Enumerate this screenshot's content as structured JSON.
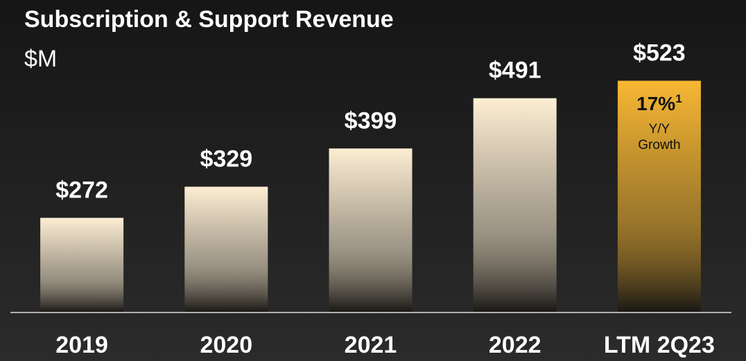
{
  "chart_data": {
    "type": "bar",
    "title": "Subscription & Support Revenue",
    "subtitle": "$M",
    "categories": [
      "2019",
      "2020",
      "2021",
      "2022",
      "LTM 2Q23"
    ],
    "values": [
      272,
      329,
      399,
      491,
      523
    ],
    "value_labels": [
      "$272",
      "$329",
      "$399",
      "$491",
      "$523"
    ],
    "colors": [
      "#fdeed3",
      "#fdeed3",
      "#fdeed3",
      "#fdeed3",
      "#f7b733"
    ],
    "ylim": [
      100,
      530
    ],
    "annotation": {
      "text": "17%",
      "superscript": "1",
      "lines": [
        "Y/Y",
        "Growth"
      ]
    }
  }
}
